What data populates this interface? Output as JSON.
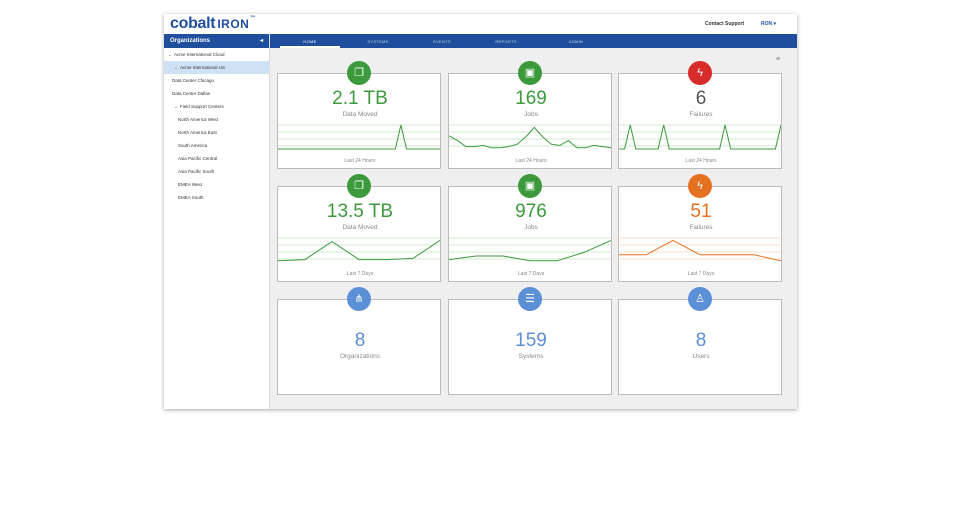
{
  "header": {
    "logo_main": "cobalt",
    "logo_sub": "IRON",
    "logo_tm": "™",
    "contact_support": "Contact Support",
    "user": "RON ▾"
  },
  "sidebar": {
    "title": "Organizations",
    "collapse": "◂",
    "items": [
      {
        "label": "Acme International Cloud",
        "chev": "⌄",
        "level": 0,
        "selected": false
      },
      {
        "label": "Acme International US",
        "chev": "⌄",
        "level": 1,
        "selected": true
      },
      {
        "label": "Data Center Chicago",
        "chev": "",
        "level": 1,
        "selected": false
      },
      {
        "label": "Data Center Dallas",
        "chev": "",
        "level": 1,
        "selected": false
      },
      {
        "label": "Field Support Centers",
        "chev": "⌄",
        "level": 1,
        "selected": false
      },
      {
        "label": "North America West",
        "chev": "",
        "level": 2,
        "selected": false
      },
      {
        "label": "North America East",
        "chev": "",
        "level": 2,
        "selected": false
      },
      {
        "label": "South America",
        "chev": "",
        "level": 2,
        "selected": false
      },
      {
        "label": "Asia Pacific Central",
        "chev": "",
        "level": 2,
        "selected": false
      },
      {
        "label": "Asia Pacific South",
        "chev": "",
        "level": 2,
        "selected": false
      },
      {
        "label": "EMEA West",
        "chev": "",
        "level": 2,
        "selected": false
      },
      {
        "label": "EMEA South",
        "chev": "",
        "level": 2,
        "selected": false
      }
    ]
  },
  "nav": {
    "tabs": [
      "HOME",
      "SYSTEMS",
      "EVENTS",
      "REPORTS",
      "ADMIN"
    ],
    "active": 0,
    "menu_icon": "≡"
  },
  "colors": {
    "brand": "#1f4f9c",
    "green": "#3c9a3c",
    "red": "#d62c2c",
    "orange": "#e4711f",
    "blue": "#5b8fd6"
  },
  "cards": [
    {
      "icon": "copy-icon",
      "glyph": "❐",
      "value": "2.1 TB",
      "label": "Data Moved",
      "footer": "Last 24 Hours",
      "color": "#3c9a3c",
      "badge": "#3c9a3c",
      "series": [
        0,
        0,
        0,
        0,
        0,
        0,
        0,
        0,
        0,
        0,
        0,
        0,
        0,
        0,
        0,
        0,
        0,
        0,
        0,
        0,
        0,
        0,
        1,
        0,
        0,
        0,
        0,
        0,
        0,
        0
      ]
    },
    {
      "icon": "briefcase-icon",
      "glyph": "▣",
      "value": "169",
      "label": "Jobs",
      "footer": "Last 24 Hours",
      "color": "#3c9a3c",
      "badge": "#3c9a3c",
      "series": [
        0.55,
        0.35,
        0.1,
        0.1,
        0.15,
        0.05,
        0.05,
        0.1,
        0.2,
        0.5,
        0.9,
        0.5,
        0.2,
        0.15,
        0.35,
        0.05,
        0.05,
        0.15,
        0.1,
        0.05
      ]
    },
    {
      "icon": "bolt-icon",
      "glyph": "ϟ",
      "value": "6",
      "label": "Failures",
      "footer": "Last 24 Hours",
      "color": "#555555",
      "badge": "#d62c2c",
      "series": [
        0,
        0,
        1,
        0,
        0,
        0,
        0,
        0,
        1,
        0,
        0,
        0,
        0,
        0,
        0,
        0,
        0,
        0,
        0,
        1,
        0,
        0,
        0,
        0,
        0,
        0,
        0,
        0,
        0,
        1
      ]
    },
    {
      "icon": "copy-icon",
      "glyph": "❐",
      "value": "13.5 TB",
      "label": "Data Moved",
      "footer": "Last 7 Days",
      "color": "#3c9a3c",
      "badge": "#3c9a3c",
      "series": [
        0.05,
        0.1,
        0.85,
        0.1,
        0.1,
        0.15,
        0.9
      ]
    },
    {
      "icon": "briefcase-icon",
      "glyph": "▣",
      "value": "976",
      "label": "Jobs",
      "footer": "Last 7 Days",
      "color": "#3c9a3c",
      "badge": "#3c9a3c",
      "series": [
        0.1,
        0.25,
        0.25,
        0.05,
        0.05,
        0.4,
        0.9
      ]
    },
    {
      "icon": "bolt-icon",
      "glyph": "ϟ",
      "value": "51",
      "label": "Failures",
      "footer": "Last 7 Days",
      "color": "#e4711f",
      "badge": "#e4711f",
      "series": [
        0.3,
        0.3,
        0.9,
        0.3,
        0.3,
        0.3,
        0.05
      ]
    },
    {
      "icon": "org-chart-icon",
      "glyph": "⋔",
      "value": "8",
      "label": "Organizations",
      "footer": "",
      "color": "#5b8fd6",
      "badge": "#5b8fd6",
      "series": []
    },
    {
      "icon": "server-icon",
      "glyph": "☰",
      "value": "159",
      "label": "Systems",
      "footer": "",
      "color": "#5b8fd6",
      "badge": "#5b8fd6",
      "series": []
    },
    {
      "icon": "user-icon",
      "glyph": "♙",
      "value": "8",
      "label": "Users",
      "footer": "",
      "color": "#5b8fd6",
      "badge": "#5b8fd6",
      "series": []
    }
  ]
}
